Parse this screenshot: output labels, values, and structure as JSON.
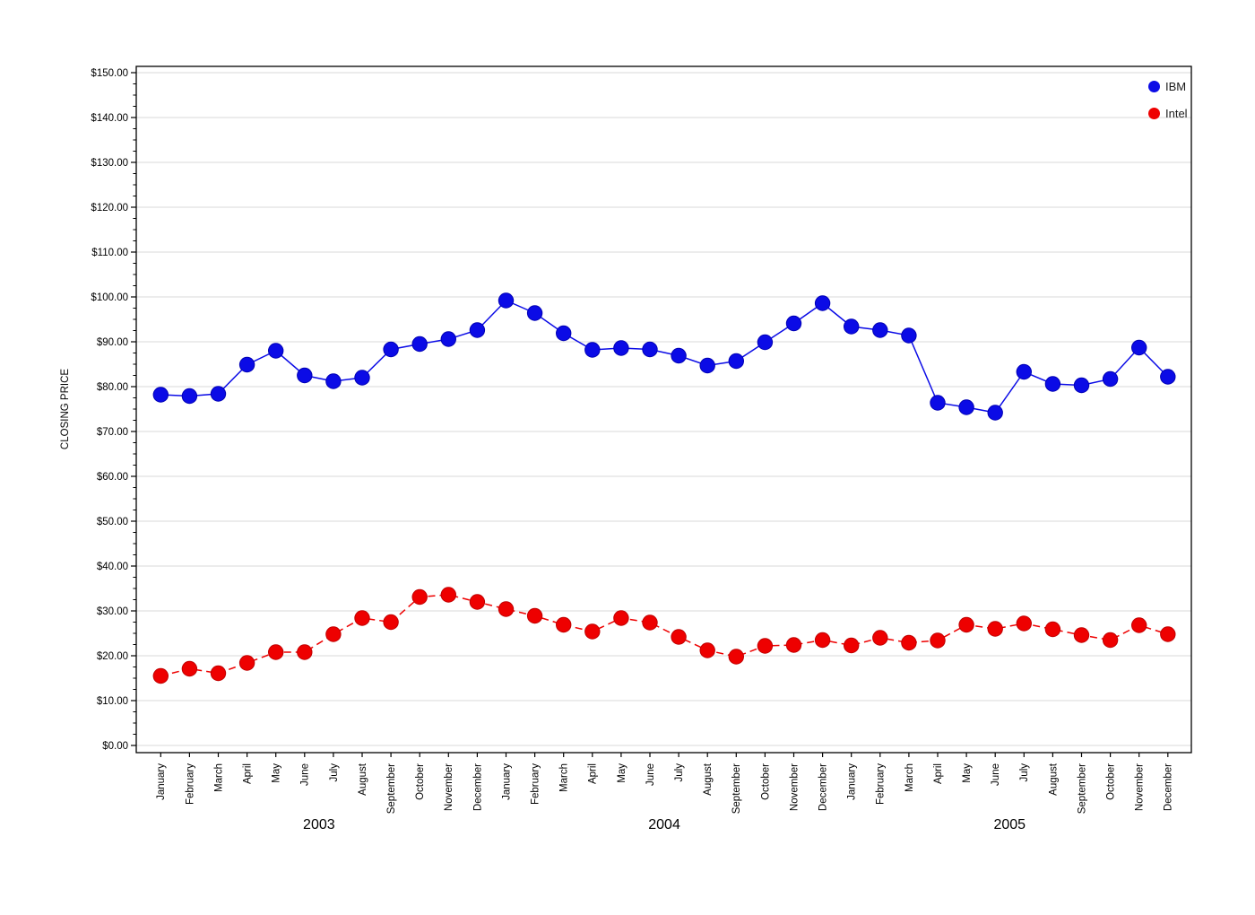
{
  "page": {
    "background_color": "#ffffff"
  },
  "chart_data": {
    "type": "line",
    "title": "",
    "ylabel": "CLOSING PRICE",
    "xlabel": "",
    "grid": "horizontal-major",
    "plot_border": true,
    "grid_color": "#d9d9d9",
    "axis_color": "#000000",
    "y_axis": {
      "min": 0,
      "max": 150,
      "major_step": 10,
      "minor_step": 2.5,
      "tick_labels": [
        "$0.00",
        "$10.00",
        "$20.00",
        "$30.00",
        "$40.00",
        "$50.00",
        "$60.00",
        "$70.00",
        "$80.00",
        "$90.00",
        "$100.00",
        "$110.00",
        "$120.00",
        "$130.00",
        "$140.00",
        "$150.00"
      ]
    },
    "x_axis": {
      "month_labels": [
        "January",
        "February",
        "March",
        "April",
        "May",
        "June",
        "July",
        "August",
        "September",
        "October",
        "November",
        "December"
      ],
      "year_labels": [
        "2003",
        "2004",
        "2005"
      ]
    },
    "legend": {
      "position": "top-right-inside",
      "entries": [
        "IBM",
        "Intel"
      ]
    },
    "series": [
      {
        "name": "IBM",
        "color": "#0b0be6",
        "marker_edge": "#0000b4",
        "line_style": "solid",
        "marker": "circle",
        "values": [
          78.2,
          77.9,
          78.4,
          84.9,
          88.0,
          82.5,
          81.2,
          82.0,
          88.3,
          89.5,
          90.6,
          92.6,
          99.2,
          96.4,
          91.9,
          88.2,
          88.6,
          88.3,
          86.9,
          84.7,
          85.7,
          89.9,
          94.1,
          98.6,
          93.4,
          92.6,
          91.4,
          76.4,
          75.4,
          74.2,
          83.3,
          80.6,
          80.3,
          81.7,
          88.7,
          82.2
        ]
      },
      {
        "name": "Intel",
        "color": "#ee0000",
        "marker_edge": "#c00000",
        "line_style": "dashed",
        "marker": "circle",
        "values": [
          15.5,
          17.1,
          16.1,
          18.4,
          20.8,
          20.8,
          24.8,
          28.4,
          27.5,
          33.1,
          33.6,
          32.0,
          30.4,
          28.9,
          26.9,
          25.4,
          28.4,
          27.4,
          24.2,
          21.2,
          19.8,
          22.2,
          22.4,
          23.5,
          22.3,
          24.0,
          22.9,
          23.4,
          26.9,
          26.0,
          27.2,
          25.9,
          24.6,
          23.5,
          26.8,
          24.8
        ]
      }
    ]
  }
}
